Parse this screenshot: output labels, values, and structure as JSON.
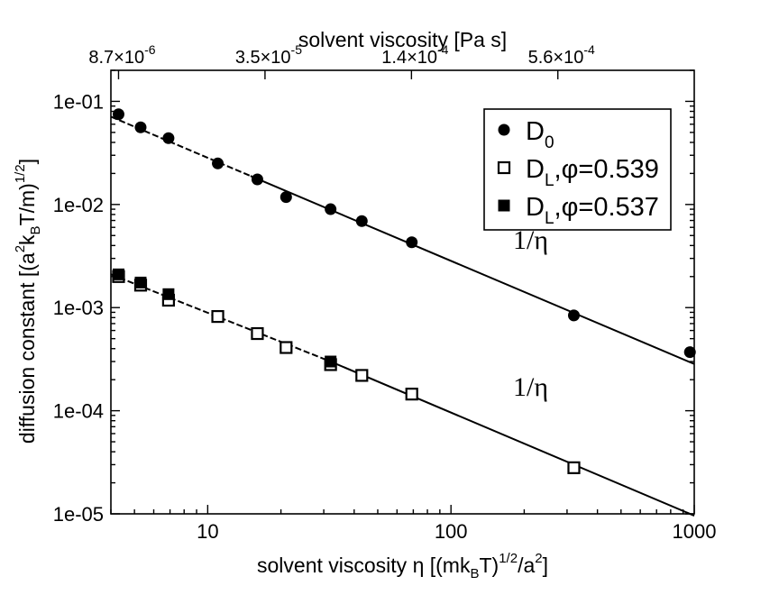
{
  "chart_data": {
    "type": "scatter",
    "xscale": "log",
    "yscale": "log",
    "xlim": [
      4.0,
      1000
    ],
    "ylim": [
      1e-05,
      0.2
    ],
    "xlabel": {
      "prefix": "solvent viscosity η [(mk",
      "sub": "B",
      "mid": "T)",
      "sup1": "1/2",
      "mid2": "/a",
      "sup2": "2",
      "suffix": "]"
    },
    "ylabel": {
      "prefix": "diffusion constant [(a",
      "sup1": "2",
      "mid": "k",
      "sub": "B",
      "mid2": "T/m)",
      "sup2": "1/2",
      "suffix": "]"
    },
    "top_axis_label": "solvent viscosity [Pa s]",
    "top_ticks": [
      {
        "x": 4.3,
        "mant": "8.7×10",
        "exp": "-6"
      },
      {
        "x": 17.2,
        "mant": "3.5×10",
        "exp": "-5"
      },
      {
        "x": 68.8,
        "mant": "1.4×10",
        "exp": "-4"
      },
      {
        "x": 275,
        "mant": "5.6×10",
        "exp": "-4"
      }
    ],
    "x_ticks": [
      {
        "value": 10,
        "label": "10"
      },
      {
        "value": 100,
        "label": "100"
      },
      {
        "value": 1000,
        "label": "1000"
      }
    ],
    "y_ticks": [
      {
        "value": 0.1,
        "label": "1e-01"
      },
      {
        "value": 0.01,
        "label": "1e-02"
      },
      {
        "value": 0.001,
        "label": "1e-03"
      },
      {
        "value": 0.0001,
        "label": "1e-04"
      },
      {
        "value": 1e-05,
        "label": "1e-05"
      }
    ],
    "series": [
      {
        "name": "D0",
        "legend_main": "D",
        "legend_sub": "0",
        "legend_rest": "",
        "marker": "filled-circle",
        "x": [
          4.3,
          5.3,
          6.9,
          11,
          16,
          21,
          32,
          43,
          69,
          320,
          960
        ],
        "y": [
          0.075,
          0.056,
          0.044,
          0.025,
          0.0175,
          0.0118,
          0.009,
          0.0069,
          0.0043,
          0.00084,
          0.00037
        ]
      },
      {
        "name": "DL, phi=0.539",
        "legend_main": "D",
        "legend_sub": "L",
        "legend_rest": ",φ=0.539",
        "marker": "open-square",
        "x": [
          4.3,
          5.3,
          6.9,
          11,
          16,
          21,
          32,
          43,
          69,
          320
        ],
        "y": [
          0.002,
          0.00165,
          0.00118,
          0.00082,
          0.00056,
          0.00041,
          0.00028,
          0.00022,
          0.000145,
          2.8e-05
        ]
      },
      {
        "name": "DL, phi=0.537",
        "legend_main": "D",
        "legend_sub": "L",
        "legend_rest": ",φ=0.537",
        "marker": "filled-square",
        "x": [
          4.3,
          5.3,
          6.9,
          32
        ],
        "y": [
          0.0021,
          0.00175,
          0.00135,
          0.0003
        ]
      }
    ],
    "fit_lines": [
      {
        "label": "1/η",
        "style": "solid",
        "x": [
          15,
          1000
        ],
        "y": [
          0.0189,
          0.000284
        ],
        "label_at": [
          180,
          0.0037
        ]
      },
      {
        "label": "1/η",
        "style": "solid",
        "x": [
          32,
          1000
        ],
        "y": [
          0.0003,
          9.6e-06
        ],
        "label_at": [
          180,
          0.00014
        ]
      },
      {
        "label": "",
        "style": "dashed",
        "x": [
          4.0,
          15
        ],
        "y": [
          0.071,
          0.0189
        ]
      },
      {
        "label": "",
        "style": "dashed",
        "x": [
          4.0,
          32
        ],
        "y": [
          0.0021,
          0.0003
        ]
      }
    ],
    "legend_position": "top-right"
  }
}
